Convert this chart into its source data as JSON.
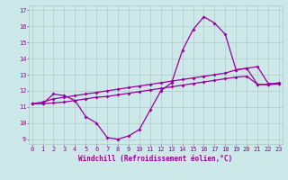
{
  "xlabel": "Windchill (Refroidissement éolien,°C)",
  "background_color": "#cce8e8",
  "line_color": "#990099",
  "grid_color": "#b0c8c8",
  "hours": [
    0,
    1,
    2,
    3,
    4,
    5,
    6,
    7,
    8,
    9,
    10,
    11,
    12,
    13,
    14,
    15,
    16,
    17,
    18,
    19,
    20,
    21,
    22,
    23
  ],
  "line_main": [
    11.2,
    11.2,
    11.8,
    11.7,
    11.4,
    10.4,
    10.0,
    9.1,
    9.0,
    9.2,
    9.6,
    10.8,
    12.0,
    12.5,
    14.5,
    15.8,
    16.6,
    16.2,
    15.5,
    13.3,
    13.4,
    12.4,
    12.4,
    12.5
  ],
  "line_upper": [
    11.2,
    11.3,
    11.5,
    11.6,
    11.7,
    11.8,
    11.9,
    12.0,
    12.1,
    12.2,
    12.3,
    12.4,
    12.5,
    12.6,
    12.7,
    12.8,
    12.9,
    13.0,
    13.1,
    13.3,
    13.4,
    13.5,
    12.45,
    12.45
  ],
  "line_lower": [
    11.2,
    11.2,
    11.25,
    11.3,
    11.4,
    11.5,
    11.6,
    11.65,
    11.75,
    11.85,
    11.95,
    12.05,
    12.15,
    12.25,
    12.35,
    12.45,
    12.55,
    12.65,
    12.75,
    12.85,
    12.9,
    12.4,
    12.38,
    12.42
  ],
  "yticks": [
    9,
    10,
    11,
    12,
    13,
    14,
    15,
    16,
    17
  ],
  "xticks": [
    0,
    1,
    2,
    3,
    4,
    5,
    6,
    7,
    8,
    9,
    10,
    11,
    12,
    13,
    14,
    15,
    16,
    17,
    18,
    19,
    20,
    21,
    22,
    23
  ],
  "ylim": [
    8.7,
    17.3
  ],
  "xlim": [
    -0.3,
    23.3
  ],
  "tick_fontsize": 5,
  "xlabel_fontsize": 5.5,
  "marker_size": 2.0,
  "line_width": 0.9
}
